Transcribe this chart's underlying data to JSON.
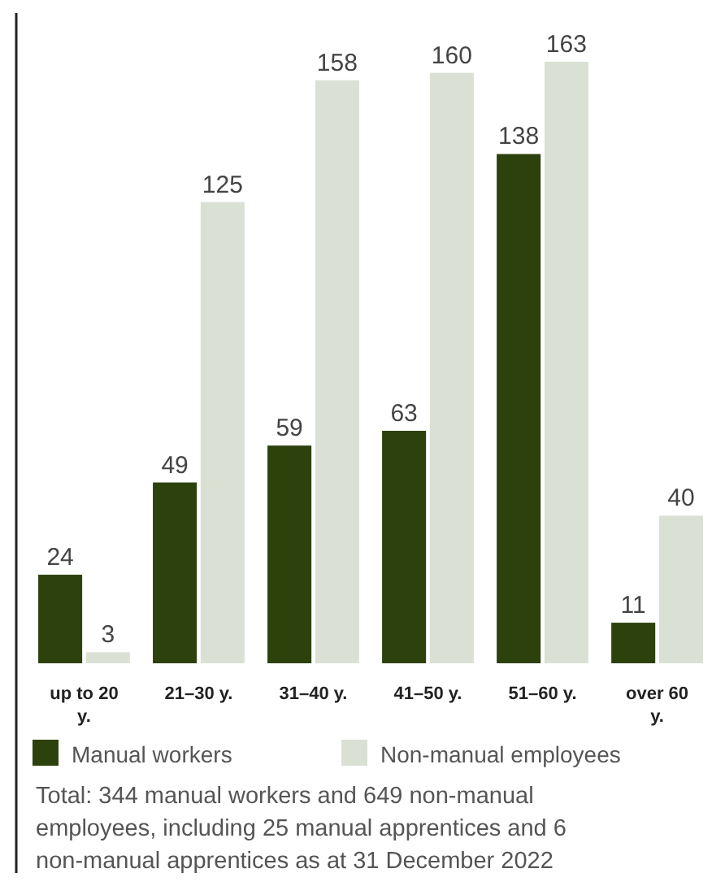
{
  "chart_data": {
    "type": "bar",
    "categories": [
      "up to 20 y.",
      "21–30 y.",
      "31–40 y.",
      "41–50 y.",
      "51–60 y.",
      "over 60 y."
    ],
    "series": [
      {
        "name": "Manual workers",
        "color": "#2d410d",
        "values": [
          24,
          49,
          59,
          63,
          138,
          11
        ]
      },
      {
        "name": "Non-manual employees",
        "color": "#dae1d4",
        "values": [
          3,
          125,
          158,
          160,
          163,
          40
        ]
      }
    ],
    "data_labels": true,
    "legend": "bottom",
    "annotations": [
      "Total: 344 manual workers and 649 non-manual employees, including 25 manual apprentices and 6 non-manual apprentices as at 31 December 2022"
    ]
  }
}
